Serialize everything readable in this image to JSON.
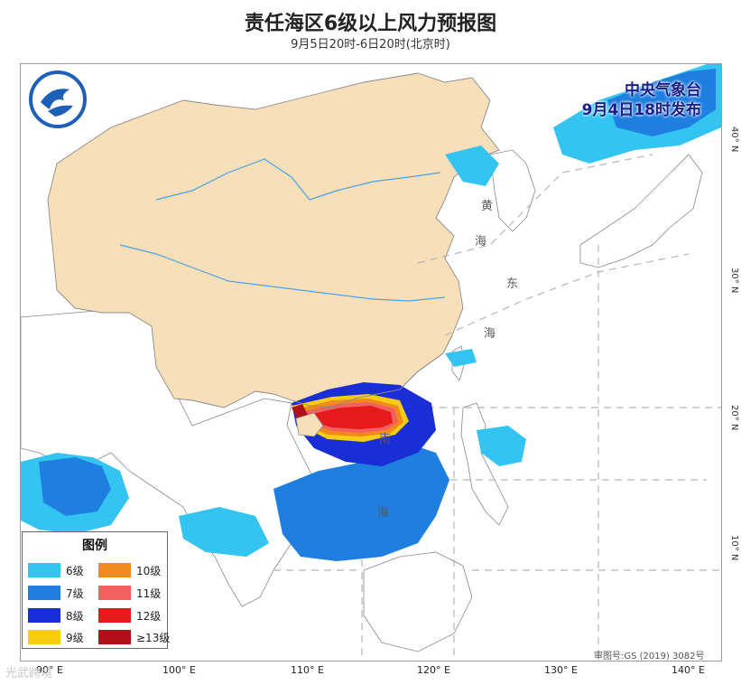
{
  "title": "责任海区6级以上风力预报图",
  "subtitle": "9月5日20时-6日20时(北京时)",
  "issuer": {
    "line1": "中央气象台",
    "line2": "9月4日18时发布"
  },
  "sea_labels": {
    "yellow_sea_1": "黄",
    "yellow_sea_2": "海",
    "east_sea_1": "东",
    "east_sea_2": "海",
    "south_sea_1": "南",
    "south_sea_2": "海"
  },
  "latitude_labels": [
    "40° N",
    "30° N",
    "20° N",
    "10° N"
  ],
  "longitude_labels": [
    "90° E",
    "100° E",
    "110° E",
    "120° E",
    "130° E",
    "140° E"
  ],
  "legend": {
    "title": "图例",
    "items": [
      {
        "label": "6级",
        "color": "#33c4f2"
      },
      {
        "label": "10级",
        "color": "#f08a1c"
      },
      {
        "label": "7级",
        "color": "#1e7fe0"
      },
      {
        "label": "11级",
        "color": "#f26060"
      },
      {
        "label": "8级",
        "color": "#1a2ed6"
      },
      {
        "label": "12级",
        "color": "#e61a1a"
      },
      {
        "label": "9级",
        "color": "#f7cc12"
      },
      {
        "label": "≥13级",
        "color": "#b0101a"
      }
    ]
  },
  "approval_number": "审图号:GS (2019) 3082号",
  "watermark": "光武跨境",
  "colors": {
    "land_china": "#f7dfb9",
    "land_other": "#ffffff",
    "rivers": "#4aa3e6",
    "border": "#9a9a9a"
  }
}
